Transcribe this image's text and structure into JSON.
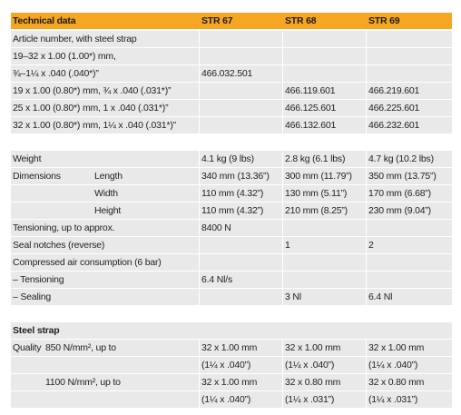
{
  "header": {
    "title": "Technical data",
    "columns": [
      "STR 67",
      "STR 68",
      "STR 69"
    ]
  },
  "sections": [
    {
      "rows": [
        {
          "label": "Article number, with steel strap",
          "values": [
            null,
            null,
            null
          ]
        },
        {
          "label": "19–32 x 1.00 (1.00*) mm,",
          "values": [
            null,
            null,
            null
          ]
        },
        {
          "label": "¾–1¼ x .040 (.040*)”",
          "values": [
            "466.032.501",
            null,
            null
          ]
        },
        {
          "label": "19 x 1.00 (0.80*) mm, ¾ x .040 (.031*)”",
          "values": [
            null,
            "466.119.601",
            "466.219.601"
          ]
        },
        {
          "label": "25 x 1.00 (0.80*) mm, 1 x .040 (.031*)”",
          "values": [
            null,
            "466.125.601",
            "466.225.601"
          ]
        },
        {
          "label": "32 x 1.00 (0.80*) mm, 1¼ x .040 (.031*)”",
          "values": [
            null,
            "466.132.601",
            "466.232.601"
          ]
        }
      ]
    },
    {
      "rows": [
        {
          "label": "Weight",
          "values": [
            "4.1 kg (9 lbs)",
            "2.8 kg (6.1 lbs)",
            "4.7 kg (10.2 lbs)"
          ]
        },
        {
          "label": "Dimensions",
          "sublabel": "Length",
          "values": [
            "340 mm (13.36”)",
            "300 mm (11.79”)",
            "350 mm (13.75”)"
          ]
        },
        {
          "sublabel": "Width",
          "values": [
            "110 mm (4.32”)",
            "130 mm (5.11”)",
            "170 mm (6.68”)"
          ]
        },
        {
          "sublabel": "Height",
          "values": [
            "110 mm (4.32”)",
            "210 mm (8.25”)",
            "230 mm (9.04”)"
          ]
        },
        {
          "label": "Tensioning, up to approx.",
          "values": [
            "8400 N",
            null,
            null
          ]
        },
        {
          "label": "Seal notches (reverse)",
          "values": [
            null,
            "1",
            "2"
          ]
        },
        {
          "label": "Compressed air consumption (6 bar)",
          "values": [
            null,
            null,
            null
          ]
        },
        {
          "label": "– Tensioning",
          "values": [
            "6.4 Nl/s",
            null,
            null
          ]
        },
        {
          "label": "– Sealing",
          "values": [
            null,
            "3 Nl",
            "6.4 Nl"
          ]
        }
      ]
    },
    {
      "title": "Steel strap",
      "rows": [
        {
          "label": "Quality",
          "sublabel": "850 N/mm², up to",
          "values": [
            "32 x 1.00 mm",
            "32 x 1.00 mm",
            "32 x 1.00 mm"
          ]
        },
        {
          "values": [
            "(1¼ x .040”)",
            "(1¼ x .040”)",
            "(1¼ x .040”)"
          ]
        },
        {
          "sublabel": "1100 N/mm², up to",
          "values": [
            "32 x 1.00 mm",
            "32 x 0.80 mm",
            "32 x 0.80 mm"
          ]
        },
        {
          "values": [
            "(1¼ x .040”)",
            "(1¼ x .031”)",
            "(1¼ x .031”)"
          ]
        }
      ]
    }
  ]
}
